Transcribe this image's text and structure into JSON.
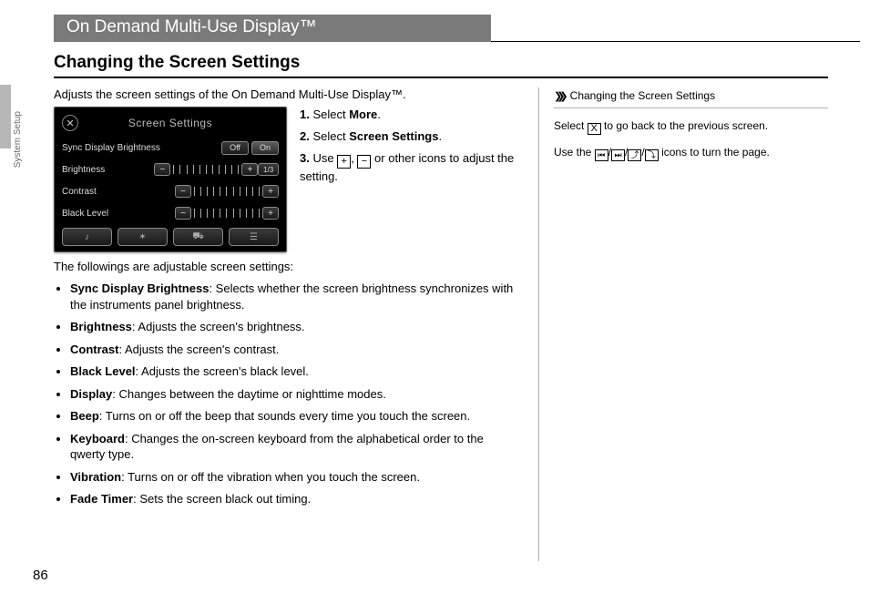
{
  "page_number": "86",
  "side_label": "System Setup",
  "title": "On Demand Multi-Use Display™",
  "heading": "Changing the Screen Settings",
  "intro": "Adjusts the screen settings of the On Demand Multi-Use Display™.",
  "screenshot": {
    "title": "Screen Settings",
    "rows": {
      "sync": {
        "label": "Sync Display Brightness",
        "off": "Off",
        "on": "On"
      },
      "brightness": {
        "label": "Brightness",
        "minus": "−",
        "plus": "+"
      },
      "contrast": {
        "label": "Contrast",
        "minus": "−",
        "plus": "+"
      },
      "black": {
        "label": "Black Level",
        "minus": "−",
        "plus": "+"
      }
    },
    "page_indicator": "1/3",
    "tick_count": 11
  },
  "steps": [
    {
      "n": "1.",
      "pre": "Select ",
      "bold": "More",
      "post": "."
    },
    {
      "n": "2.",
      "pre": "Select ",
      "bold": "Screen Settings",
      "post": "."
    },
    {
      "n": "3.",
      "pre": "Use ",
      "post": " or other icons to adjust the setting.",
      "has_icons": true,
      "sep": ", "
    }
  ],
  "icons": {
    "plus": "+",
    "minus": "−"
  },
  "subhead": "The followings are adjustable screen settings:",
  "items": [
    {
      "name": "Sync Display Brightness",
      "desc": ": Selects whether the screen brightness synchronizes with the instruments panel brightness."
    },
    {
      "name": "Brightness",
      "desc": ": Adjusts the screen's brightness."
    },
    {
      "name": "Contrast",
      "desc": ": Adjusts the screen's contrast."
    },
    {
      "name": "Black Level",
      "desc": ": Adjusts the screen's black level."
    },
    {
      "name": "Display",
      "desc": ": Changes between the daytime or nighttime modes."
    },
    {
      "name": "Beep",
      "desc": ": Turns on or off the beep that sounds every time you touch the screen."
    },
    {
      "name": "Keyboard",
      "desc": ": Changes the on-screen keyboard from the alphabetical order to the qwerty type."
    },
    {
      "name": "Vibration",
      "desc": ": Turns on or off the vibration when you touch the screen."
    },
    {
      "name": "Fade Timer",
      "desc": ": Sets the screen black out timing."
    }
  ],
  "right": {
    "header": "Changing the Screen Settings",
    "line1_pre": "Select ",
    "line1_post": " to go back to the previous screen.",
    "line2_pre": "Use the ",
    "line2_mid": " icons to turn the page.",
    "nav_icons": {
      "first": "⏮",
      "last": "⏭",
      "up": "⤴",
      "down": "⤵"
    }
  }
}
